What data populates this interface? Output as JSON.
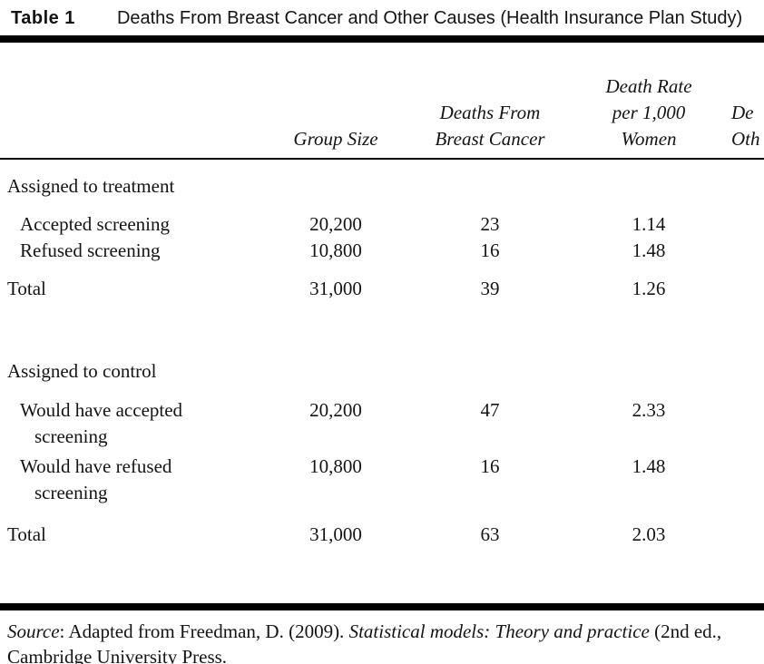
{
  "caption": {
    "label": "Table 1",
    "title": "Deaths From Breast Cancer and Other Causes (Health Insurance Plan Study)"
  },
  "headers": {
    "group_size": [
      "Group Size"
    ],
    "deaths_breast": [
      "Deaths From",
      "Breast Cancer"
    ],
    "death_rate": [
      "Death Rate",
      "per 1,000",
      "Women"
    ],
    "deaths_other_clipped": [
      "De",
      "Oth"
    ]
  },
  "sections": [
    {
      "header": "Assigned to treatment",
      "rows": [
        {
          "label": [
            "Accepted screening"
          ],
          "group_size": "20,200",
          "deaths": "23",
          "rate": "1.14"
        },
        {
          "label": [
            "Refused screening"
          ],
          "group_size": "10,800",
          "deaths": "16",
          "rate": "1.48"
        }
      ],
      "total": {
        "label": "Total",
        "group_size": "31,000",
        "deaths": "39",
        "rate": "1.26"
      }
    },
    {
      "header": "Assigned to control",
      "rows": [
        {
          "label": [
            "Would have accepted",
            "screening"
          ],
          "group_size": "20,200",
          "deaths": "47",
          "rate": "2.33"
        },
        {
          "label": [
            "Would have refused",
            "screening"
          ],
          "group_size": "10,800",
          "deaths": "16",
          "rate": "1.48"
        }
      ],
      "total": {
        "label": "Total",
        "group_size": "31,000",
        "deaths": "63",
        "rate": "2.03"
      }
    }
  ],
  "source": {
    "p1": "Source",
    "p2": ": Adapted from Freedman, D. (2009). ",
    "p3": "Statistical models: Theory and practice",
    "p4": " (2nd ed.,",
    "line2": "Cambridge University Press."
  },
  "colors": {
    "background": "#ffffff",
    "text": "#141414",
    "rule": "#000000"
  }
}
